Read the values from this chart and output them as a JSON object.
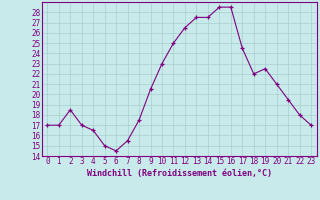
{
  "x": [
    0,
    1,
    2,
    3,
    4,
    5,
    6,
    7,
    8,
    9,
    10,
    11,
    12,
    13,
    14,
    15,
    16,
    17,
    18,
    19,
    20,
    21,
    22,
    23
  ],
  "y": [
    17,
    17,
    18.5,
    17,
    16.5,
    15,
    14.5,
    15.5,
    17.5,
    20.5,
    23,
    25,
    26.5,
    27.5,
    27.5,
    28.5,
    28.5,
    24.5,
    22,
    22.5,
    21,
    19.5,
    18,
    17
  ],
  "line_color": "#800080",
  "marker": "+",
  "marker_color": "#800080",
  "bg_color": "#c8eaea",
  "grid_color": "#a8cece",
  "xlabel": "Windchill (Refroidissement éolien,°C)",
  "ylim": [
    14,
    29
  ],
  "xlim": [
    -0.5,
    23.5
  ],
  "yticks": [
    14,
    15,
    16,
    17,
    18,
    19,
    20,
    21,
    22,
    23,
    24,
    25,
    26,
    27,
    28
  ],
  "xticks": [
    0,
    1,
    2,
    3,
    4,
    5,
    6,
    7,
    8,
    9,
    10,
    11,
    12,
    13,
    14,
    15,
    16,
    17,
    18,
    19,
    20,
    21,
    22,
    23
  ],
  "tick_color": "#800080",
  "axis_color": "#800080",
  "label_fontsize": 6.0,
  "tick_fontsize": 5.5
}
